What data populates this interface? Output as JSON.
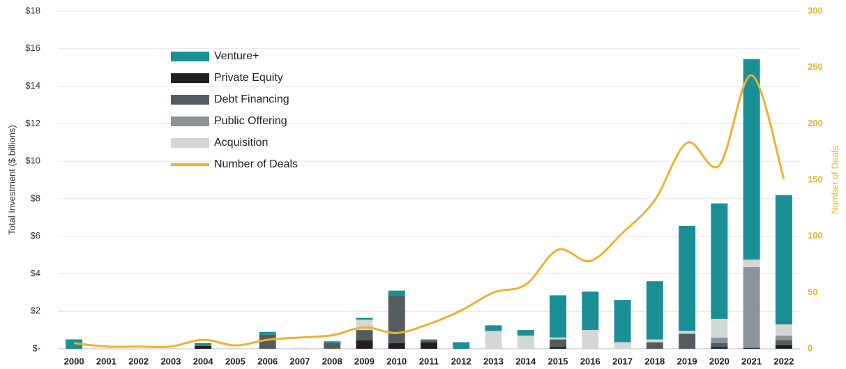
{
  "chart_data": {
    "type": "bar",
    "ylabel": "Total Investment ($ billions)",
    "y2label": "Number of Deals",
    "categories": [
      "2000",
      "2001",
      "2002",
      "2003",
      "2004",
      "2005",
      "2006",
      "2007",
      "2008",
      "2009",
      "2010",
      "2011",
      "2012",
      "2013",
      "2014",
      "2015",
      "2016",
      "2017",
      "2018",
      "2019",
      "2020",
      "2021",
      "2022"
    ],
    "series": [
      {
        "name": "Venture+",
        "color": "#1a8f96",
        "values": [
          0.5,
          0,
          0,
          0,
          0.15,
          0,
          0.15,
          0,
          0.1,
          0.1,
          0.25,
          0.05,
          0.35,
          0.3,
          0.3,
          2.25,
          2.05,
          2.25,
          3.1,
          5.6,
          6.15,
          10.7,
          6.9
        ]
      },
      {
        "name": "Private Equity",
        "color": "#231f20",
        "values": [
          0,
          0,
          0,
          0,
          0.15,
          0,
          0,
          0,
          0,
          0.45,
          0.3,
          0.35,
          0,
          0,
          0,
          0.1,
          0,
          0,
          0,
          0,
          0.1,
          0.05,
          0.2
        ]
      },
      {
        "name": "Debt Financing",
        "color": "#555c60",
        "values": [
          0,
          0,
          0,
          0,
          0,
          0,
          0.75,
          0,
          0.3,
          0.55,
          2.55,
          0.1,
          0,
          0,
          0,
          0.4,
          0,
          0,
          0.35,
          0.8,
          0.2,
          0,
          0.25
        ]
      },
      {
        "name": "Public Offering",
        "color": "#8a9499",
        "values": [
          0,
          0,
          0,
          0,
          0,
          0,
          0,
          0,
          0,
          0,
          0,
          0,
          0,
          0,
          0,
          0,
          0,
          0,
          0,
          0,
          0.3,
          4.3,
          0.25
        ]
      },
      {
        "name": "Acquisition",
        "color": "#d4d6d7",
        "values": [
          0,
          0,
          0,
          0,
          0,
          0,
          0,
          0.05,
          0,
          0.55,
          0,
          0,
          0,
          0.95,
          0.7,
          0.1,
          1.0,
          0.35,
          0.15,
          0.15,
          1.0,
          0.4,
          0.6
        ]
      },
      {
        "name": "Number of Deals",
        "color": "#ecb22e",
        "type": "line",
        "axis": "y2",
        "values": [
          5,
          2,
          2,
          2,
          8,
          3,
          8,
          10,
          12,
          19,
          14,
          22,
          34,
          50,
          57,
          88,
          78,
          103,
          132,
          183,
          163,
          243,
          151
        ]
      }
    ],
    "ylim": [
      0,
      18
    ],
    "yticks": [
      {
        "value": 0,
        "label": "$-"
      },
      {
        "value": 2,
        "label": "$2"
      },
      {
        "value": 4,
        "label": "$4"
      },
      {
        "value": 6,
        "label": "$6"
      },
      {
        "value": 8,
        "label": "$8"
      },
      {
        "value": 10,
        "label": "$10"
      },
      {
        "value": 12,
        "label": "$12"
      },
      {
        "value": 14,
        "label": "$14"
      },
      {
        "value": 16,
        "label": "$16"
      },
      {
        "value": 18,
        "label": "$18"
      }
    ],
    "y2lim": [
      0,
      300
    ],
    "y2ticks": [
      0,
      50,
      100,
      150,
      200,
      250,
      300
    ],
    "grid": true
  }
}
